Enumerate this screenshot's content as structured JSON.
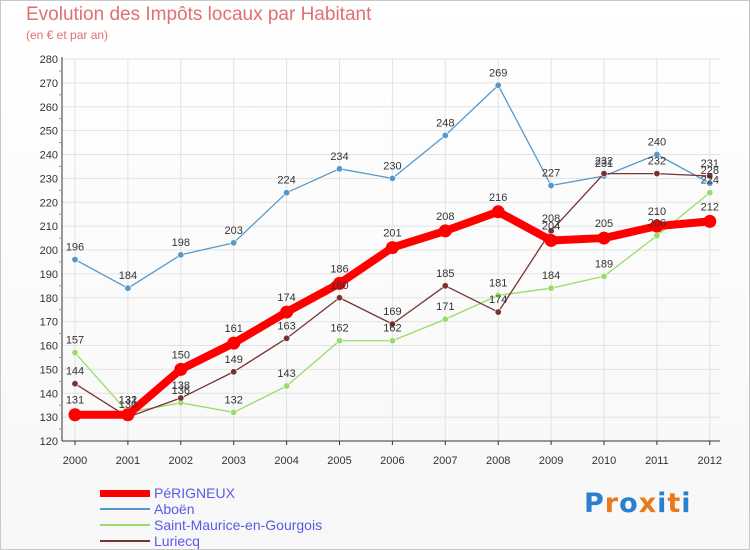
{
  "header": {
    "title": "Evolution des Impôts locaux par Habitant",
    "subtitle": "(en € et par an)"
  },
  "chart_data": {
    "type": "line",
    "title": "Evolution des Impôts locaux par Habitant",
    "subtitle": "(en € et par an)",
    "xlabel": "",
    "ylabel": "",
    "x": [
      "2000",
      "2001",
      "2002",
      "2003",
      "2004",
      "2005",
      "2006",
      "2007",
      "2008",
      "2009",
      "2010",
      "2011",
      "2012"
    ],
    "ylim": [
      120,
      280
    ],
    "yticks": [
      120,
      130,
      140,
      150,
      160,
      170,
      180,
      190,
      200,
      210,
      220,
      230,
      240,
      250,
      260,
      270,
      280
    ],
    "grid": true,
    "legend_position": "bottom-left",
    "series": [
      {
        "name": "Aboën",
        "color": "#5599cc",
        "values": [
          196,
          184,
          198,
          203,
          224,
          234,
          230,
          248,
          269,
          227,
          231,
          240,
          228
        ],
        "labels": [
          "196",
          "184",
          "198",
          "203",
          "224",
          "234",
          "230",
          "248",
          "269",
          "227",
          "231",
          "240",
          "228"
        ]
      },
      {
        "name": "Saint-Maurice-en-Gourgois",
        "color": "#99dd66",
        "values": [
          157,
          132,
          136,
          132,
          143,
          162,
          162,
          171,
          181,
          184,
          189,
          206,
          224
        ],
        "labels": [
          "157",
          "132",
          "136",
          "132",
          "143",
          "162",
          "162",
          "171",
          "181",
          "184",
          "189",
          "206",
          "224"
        ]
      },
      {
        "name": "Luriecq",
        "color": "#773333",
        "values": [
          144,
          130,
          138,
          149,
          163,
          180,
          169,
          185,
          174,
          208,
          232,
          232,
          231
        ],
        "labels": [
          "144",
          "130",
          "138",
          "149",
          "163",
          "180",
          "169",
          "185",
          "174",
          "208",
          "232",
          "232",
          "231"
        ]
      },
      {
        "name": "PéRIGNEUX",
        "color": "#ff0000",
        "values": [
          131,
          131,
          150,
          161,
          174,
          186,
          201,
          208,
          216,
          204,
          205,
          210,
          212
        ],
        "labels": [
          "131",
          "131",
          "150",
          "161",
          "174",
          "186",
          "201",
          "208",
          "216",
          "204",
          "205",
          "210",
          "212"
        ]
      }
    ]
  },
  "legend": {
    "items": [
      {
        "label": "PéRIGNEUX",
        "color": "#ff0000",
        "weight": "thick"
      },
      {
        "label": "Aboën",
        "color": "#5599cc",
        "weight": "thin"
      },
      {
        "label": "Saint-Maurice-en-Gourgois",
        "color": "#99dd66",
        "weight": "thin"
      },
      {
        "label": "Luriecq",
        "color": "#773333",
        "weight": "thin"
      }
    ]
  },
  "logo": {
    "text": "Proxiti",
    "letter_colors": [
      "#2b7fd0",
      "#e87a1c",
      "#2b7fd0",
      "#e87a1c",
      "#2b7fd0",
      "#e87a1c",
      "#2b7fd0"
    ]
  }
}
